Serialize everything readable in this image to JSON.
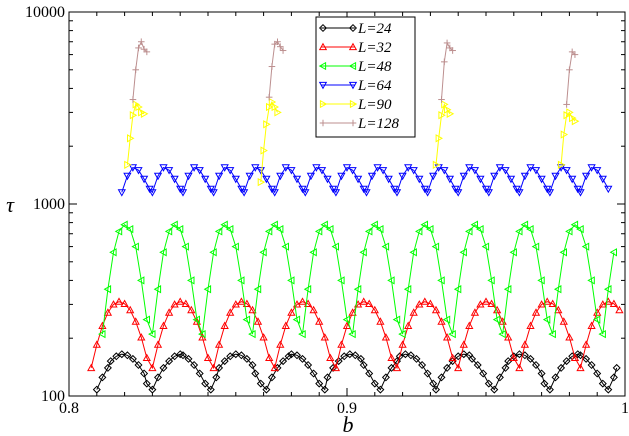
{
  "chart_data": {
    "type": "line",
    "xlabel": "b",
    "ylabel": "τ",
    "xlim": [
      0.8,
      1.0
    ],
    "ylim": [
      100,
      10000
    ],
    "yscale": "log",
    "grid": false,
    "legend_position": "top-center",
    "x_ticks": [
      {
        "value": 0.8,
        "label": "0.8"
      },
      {
        "value": 0.9,
        "label": "0.9"
      },
      {
        "value": 1.0,
        "label": "1"
      }
    ],
    "y_ticks": [
      {
        "value": 100,
        "label": "100"
      },
      {
        "value": 1000,
        "label": "1000"
      },
      {
        "value": 10000,
        "label": "10000"
      }
    ],
    "series": [
      {
        "name": "L=24",
        "color": "#000000",
        "marker": "diamond",
        "arch_start": 0.81,
        "arch_period": 0.0176,
        "arch_peak": 165,
        "arch_base": 105,
        "x": [
          0.81,
          0.812,
          0.814,
          0.815,
          0.817,
          0.819,
          0.821,
          0.823,
          0.825,
          0.827,
          0.828,
          0.83,
          0.832,
          0.834,
          0.836,
          0.838,
          0.84,
          0.841,
          0.843,
          0.845,
          0.847,
          0.849,
          0.851,
          0.853,
          0.854,
          0.856,
          0.858,
          0.86,
          0.862,
          0.864,
          0.866,
          0.867,
          0.869,
          0.871,
          0.873,
          0.875,
          0.877,
          0.879,
          0.88,
          0.882,
          0.884,
          0.886,
          0.888,
          0.89,
          0.892,
          0.893,
          0.895,
          0.897,
          0.899,
          0.901,
          0.903,
          0.905,
          0.906,
          0.908,
          0.91,
          0.912,
          0.914,
          0.916,
          0.918,
          0.919,
          0.921,
          0.923,
          0.925,
          0.927,
          0.929,
          0.931,
          0.932,
          0.934,
          0.936,
          0.938,
          0.94,
          0.942,
          0.944,
          0.945,
          0.947,
          0.949,
          0.951,
          0.953,
          0.955,
          0.957,
          0.958,
          0.96,
          0.962,
          0.964,
          0.966,
          0.968,
          0.97,
          0.971,
          0.973,
          0.975,
          0.977,
          0.979,
          0.981,
          0.983,
          0.984,
          0.986,
          0.988,
          0.99,
          0.992,
          0.994,
          0.996,
          0.997
        ],
        "y": [
          108,
          125,
          140,
          152,
          161,
          165,
          163,
          156,
          145,
          131,
          116,
          108,
          125,
          140,
          152,
          161,
          165,
          163,
          156,
          145,
          131,
          116,
          108,
          125,
          140,
          152,
          161,
          165,
          163,
          156,
          145,
          131,
          116,
          108,
          125,
          140,
          152,
          161,
          165,
          163,
          156,
          145,
          131,
          116,
          108,
          125,
          140,
          152,
          161,
          165,
          163,
          156,
          145,
          131,
          116,
          108,
          125,
          140,
          152,
          161,
          165,
          163,
          156,
          145,
          131,
          116,
          108,
          125,
          140,
          152,
          161,
          165,
          163,
          156,
          145,
          131,
          116,
          108,
          125,
          140,
          152,
          161,
          165,
          163,
          156,
          145,
          131,
          116,
          108,
          125,
          140,
          152,
          161,
          165,
          163,
          156,
          145,
          131,
          116,
          108,
          125,
          140
        ]
      },
      {
        "name": "L=32",
        "color": "#ff0000",
        "marker": "triangle-up",
        "arch_start": 0.808,
        "arch_period": 0.0205,
        "arch_peak": 310,
        "arch_base": 130,
        "x": [
          0.808,
          0.81,
          0.812,
          0.814,
          0.816,
          0.818,
          0.82,
          0.822,
          0.824,
          0.826,
          0.828,
          0.83,
          0.832,
          0.834,
          0.836,
          0.838,
          0.84,
          0.842,
          0.844,
          0.846,
          0.848,
          0.85,
          0.852,
          0.854,
          0.856,
          0.858,
          0.86,
          0.862,
          0.864,
          0.866,
          0.868,
          0.87,
          0.872,
          0.874,
          0.876,
          0.878,
          0.88,
          0.882,
          0.884,
          0.886,
          0.888,
          0.89,
          0.892,
          0.894,
          0.896,
          0.898,
          0.9,
          0.902,
          0.904,
          0.906,
          0.908,
          0.91,
          0.912,
          0.914,
          0.916,
          0.918,
          0.92,
          0.922,
          0.924,
          0.926,
          0.928,
          0.93,
          0.932,
          0.934,
          0.936,
          0.938,
          0.94,
          0.942,
          0.944,
          0.946,
          0.948,
          0.95,
          0.952,
          0.954,
          0.956,
          0.958,
          0.96,
          0.962,
          0.964,
          0.966,
          0.968,
          0.97,
          0.972,
          0.974,
          0.976,
          0.978,
          0.98,
          0.982,
          0.984,
          0.986,
          0.988,
          0.99,
          0.992,
          0.994,
          0.996,
          0.998
        ],
        "y": [
          140,
          185,
          232,
          272,
          300,
          310,
          302,
          280,
          244,
          202,
          158,
          140,
          185,
          232,
          272,
          300,
          310,
          302,
          280,
          244,
          202,
          158,
          140,
          185,
          232,
          272,
          300,
          310,
          302,
          280,
          244,
          202,
          158,
          140,
          185,
          232,
          272,
          300,
          310,
          302,
          280,
          244,
          202,
          158,
          140,
          185,
          232,
          272,
          300,
          310,
          302,
          280,
          244,
          202,
          158,
          140,
          185,
          232,
          272,
          300,
          310,
          302,
          280,
          244,
          202,
          158,
          140,
          185,
          232,
          272,
          300,
          310,
          302,
          280,
          244,
          202,
          158,
          140,
          185,
          232,
          272,
          300,
          310,
          302,
          280,
          244,
          202,
          158,
          140,
          185,
          232,
          272,
          300,
          310,
          302,
          280
        ]
      },
      {
        "name": "L=48",
        "color": "#00ff00",
        "marker": "triangle-left",
        "arch_start": 0.812,
        "arch_period": 0.0148,
        "arch_peak": 780,
        "arch_base": 190,
        "x": [
          0.812,
          0.814,
          0.816,
          0.818,
          0.82,
          0.822,
          0.824,
          0.826,
          0.828,
          0.83,
          0.832,
          0.834,
          0.836,
          0.838,
          0.84,
          0.842,
          0.844,
          0.846,
          0.848,
          0.85,
          0.852,
          0.854,
          0.856,
          0.858,
          0.86,
          0.862,
          0.864,
          0.866,
          0.868,
          0.87,
          0.872,
          0.874,
          0.876,
          0.878,
          0.88,
          0.882,
          0.884,
          0.886,
          0.888,
          0.89,
          0.892,
          0.894,
          0.896,
          0.898,
          0.9,
          0.902,
          0.904,
          0.906,
          0.908,
          0.91,
          0.912,
          0.914,
          0.916,
          0.918,
          0.92,
          0.922,
          0.924,
          0.926,
          0.928,
          0.93,
          0.932,
          0.934,
          0.936,
          0.938,
          0.94,
          0.942,
          0.944,
          0.946,
          0.948,
          0.95,
          0.952,
          0.954,
          0.956,
          0.958,
          0.96,
          0.962,
          0.964,
          0.966,
          0.968,
          0.97,
          0.972,
          0.974,
          0.976,
          0.978,
          0.98,
          0.982,
          0.984,
          0.986,
          0.988,
          0.99,
          0.992,
          0.994,
          0.996
        ],
        "y": [
          210,
          360,
          560,
          720,
          780,
          740,
          600,
          400,
          250,
          210,
          360,
          560,
          720,
          780,
          740,
          600,
          400,
          250,
          210,
          360,
          560,
          720,
          780,
          740,
          600,
          400,
          250,
          210,
          360,
          560,
          720,
          780,
          740,
          600,
          400,
          250,
          210,
          360,
          560,
          720,
          780,
          740,
          600,
          400,
          250,
          210,
          360,
          560,
          720,
          780,
          740,
          600,
          400,
          250,
          210,
          360,
          560,
          720,
          780,
          740,
          600,
          400,
          250,
          210,
          360,
          560,
          720,
          780,
          740,
          600,
          400,
          250,
          210,
          360,
          560,
          720,
          780,
          740,
          600,
          400,
          250,
          210,
          360,
          560,
          720,
          780,
          740,
          600,
          400,
          250,
          210,
          360,
          560
        ]
      },
      {
        "name": "L=64",
        "color": "#0000ff",
        "marker": "triangle-down",
        "arch_start": 0.819,
        "arch_period": 0.0112,
        "arch_peak": 1550,
        "arch_base": 1150,
        "x": [
          0.819,
          0.821,
          0.823,
          0.825,
          0.827,
          0.829,
          0.83,
          0.832,
          0.834,
          0.836,
          0.838,
          0.84,
          0.841,
          0.843,
          0.845,
          0.847,
          0.849,
          0.851,
          0.852,
          0.854,
          0.856,
          0.858,
          0.86,
          0.862,
          0.863,
          0.865,
          0.867,
          0.869,
          0.871,
          0.873,
          0.874,
          0.876,
          0.878,
          0.88,
          0.882,
          0.884,
          0.885,
          0.887,
          0.889,
          0.891,
          0.893,
          0.895,
          0.896,
          0.898,
          0.9,
          0.902,
          0.904,
          0.906,
          0.907,
          0.909,
          0.911,
          0.913,
          0.915,
          0.917,
          0.918,
          0.92,
          0.922,
          0.924,
          0.926,
          0.928,
          0.929,
          0.931,
          0.933,
          0.935,
          0.937,
          0.939,
          0.94,
          0.942,
          0.944,
          0.946,
          0.948,
          0.95,
          0.951,
          0.953,
          0.955,
          0.957,
          0.959,
          0.961,
          0.962,
          0.964,
          0.966,
          0.968,
          0.97,
          0.972,
          0.973,
          0.975,
          0.977,
          0.979,
          0.981,
          0.983,
          0.984,
          0.986,
          0.988,
          0.99,
          0.992,
          0.994
        ],
        "y": [
          1150,
          1400,
          1550,
          1500,
          1350,
          1200,
          1150,
          1400,
          1550,
          1500,
          1350,
          1200,
          1150,
          1400,
          1550,
          1500,
          1350,
          1200,
          1150,
          1400,
          1550,
          1500,
          1350,
          1200,
          1150,
          1400,
          1550,
          1500,
          1350,
          1200,
          1150,
          1400,
          1550,
          1500,
          1350,
          1200,
          1150,
          1400,
          1550,
          1500,
          1350,
          1200,
          1150,
          1400,
          1550,
          1500,
          1350,
          1200,
          1150,
          1400,
          1550,
          1500,
          1350,
          1200,
          1150,
          1400,
          1550,
          1500,
          1350,
          1200,
          1150,
          1400,
          1550,
          1500,
          1350,
          1200,
          1150,
          1400,
          1550,
          1500,
          1350,
          1200,
          1150,
          1400,
          1550,
          1500,
          1350,
          1200,
          1150,
          1400,
          1550,
          1500,
          1350,
          1200,
          1150,
          1400,
          1550,
          1500,
          1350,
          1200,
          1150,
          1400,
          1550,
          1500,
          1350,
          1200
        ]
      },
      {
        "name": "L=90",
        "color": "#ffff00",
        "marker": "triangle-right",
        "x": [
          0.821,
          0.822,
          0.823,
          0.824,
          0.825,
          0.826,
          0.827,
          0.869,
          0.87,
          0.871,
          0.872,
          0.873,
          0.874,
          0.875,
          0.932,
          0.933,
          0.934,
          0.935,
          0.936,
          0.937,
          0.977,
          0.978,
          0.979,
          0.98,
          0.981,
          0.982
        ],
        "y": [
          1600,
          2200,
          2900,
          3300,
          3200,
          3000,
          2950,
          1300,
          1900,
          2600,
          3200,
          3400,
          3200,
          3000,
          1600,
          2200,
          2900,
          3300,
          3100,
          2950,
          1600,
          2300,
          2900,
          3000,
          2800,
          2700
        ]
      },
      {
        "name": "L=128",
        "color": "#bc8f8f",
        "marker": "plus",
        "x": [
          0.823,
          0.824,
          0.825,
          0.826,
          0.827,
          0.828,
          0.872,
          0.873,
          0.874,
          0.875,
          0.876,
          0.877,
          0.934,
          0.935,
          0.936,
          0.937,
          0.938,
          0.979,
          0.98,
          0.981,
          0.982
        ],
        "y": [
          3500,
          5000,
          6500,
          7000,
          6400,
          6200,
          3600,
          5200,
          6800,
          7000,
          6600,
          6300,
          3500,
          5500,
          6900,
          6500,
          6300,
          3300,
          5000,
          6200,
          6000
        ]
      }
    ]
  }
}
